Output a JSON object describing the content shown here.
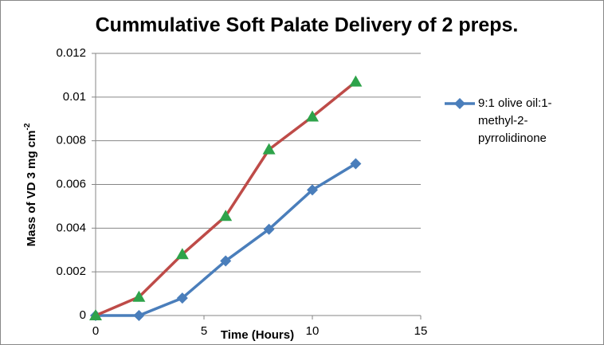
{
  "chart_data": {
    "type": "line",
    "title": "Cummulative Soft Palate Delivery of 2 preps.",
    "xlabel": "Time (Hours)",
    "ylabel": {
      "text": "Mass of VD 3 mg cm",
      "superscript": "-2"
    },
    "x": [
      0,
      2,
      4,
      6,
      8,
      10,
      12
    ],
    "series": [
      {
        "name": "9:1 olive oil:1-methyl-2-pyrrolidinone",
        "color": "#4a7ebb",
        "marker": "diamond",
        "marker_color": "#4a7ebb",
        "values": [
          0,
          0,
          0.0008,
          0.0025,
          0.00395,
          0.00575,
          0.00695
        ]
      },
      {
        "color": "#be4b48",
        "marker": "triangle",
        "marker_color": "#2ea34a",
        "values": [
          0,
          0.00085,
          0.0028,
          0.00455,
          0.0076,
          0.0091,
          0.0107
        ]
      }
    ],
    "xlim": [
      0,
      15
    ],
    "xticks": [
      0,
      5,
      10,
      15
    ],
    "ylim": [
      0,
      0.012
    ],
    "yticks": [
      0,
      0.002,
      0.004,
      0.006,
      0.008,
      0.01,
      0.012
    ],
    "grid": true,
    "legend": "right"
  }
}
